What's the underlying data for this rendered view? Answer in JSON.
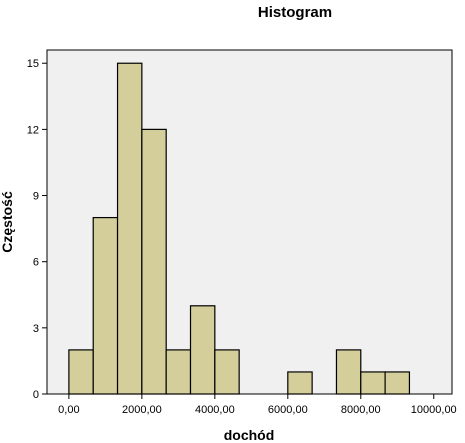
{
  "chart_data": {
    "type": "bar",
    "title": "Histogram",
    "xlabel": "dochód",
    "ylabel": "Częstość",
    "bin_width": 666.67,
    "bins": [
      {
        "start": 0,
        "end": 666.67,
        "count": 2
      },
      {
        "start": 666.67,
        "end": 1333.33,
        "count": 8
      },
      {
        "start": 1333.33,
        "end": 2000,
        "count": 15
      },
      {
        "start": 2000,
        "end": 2666.67,
        "count": 12
      },
      {
        "start": 2666.67,
        "end": 3333.33,
        "count": 2
      },
      {
        "start": 3333.33,
        "end": 4000,
        "count": 4
      },
      {
        "start": 4000,
        "end": 4666.67,
        "count": 2
      },
      {
        "start": 4666.67,
        "end": 5333.33,
        "count": 0
      },
      {
        "start": 5333.33,
        "end": 6000,
        "count": 0
      },
      {
        "start": 6000,
        "end": 6666.67,
        "count": 1
      },
      {
        "start": 6666.67,
        "end": 7333.33,
        "count": 0
      },
      {
        "start": 7333.33,
        "end": 8000,
        "count": 2
      },
      {
        "start": 8000,
        "end": 8666.67,
        "count": 1
      },
      {
        "start": 8666.67,
        "end": 9333.33,
        "count": 1
      }
    ],
    "xlim": [
      -600,
      10500
    ],
    "ylim": [
      0,
      15.6
    ],
    "x_ticks": [
      0,
      2000,
      4000,
      6000,
      8000,
      10000
    ],
    "x_tick_labels": [
      "0,00",
      "2000,00",
      "4000,00",
      "6000,00",
      "8000,00",
      "10000,00"
    ],
    "y_ticks": [
      0,
      3,
      6,
      9,
      12,
      15
    ],
    "y_tick_labels": [
      "0",
      "3",
      "6",
      "9",
      "12",
      "15"
    ],
    "grid": false,
    "colors": {
      "bar_fill": "#d4cf9a",
      "bar_stroke": "#000000",
      "plot_background": "#f0f0f0",
      "page_background": "#ffffff"
    }
  }
}
